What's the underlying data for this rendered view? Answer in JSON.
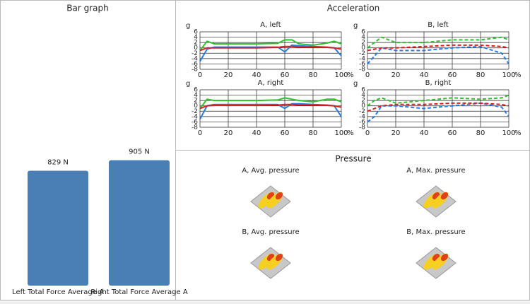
{
  "chart_data": [
    {
      "type": "bar",
      "title": "Bar graph",
      "categories": [
        "Left Total Force Average A",
        "Right Total Force Average A"
      ],
      "values": [
        829,
        905
      ],
      "value_labels": [
        "829 N",
        "905 N"
      ],
      "color": "#4a7fb5"
    },
    {
      "type": "line",
      "title": "A, left",
      "y_label": "g",
      "x_unit": "%",
      "x": [
        0,
        5,
        10,
        20,
        40,
        55,
        60,
        65,
        70,
        80,
        90,
        95,
        100
      ],
      "xlim": [
        0,
        100
      ],
      "ylim": [
        -8,
        6
      ],
      "xticks": [
        0,
        20,
        40,
        60,
        80,
        100
      ],
      "yticks": [
        6,
        4,
        2,
        0,
        -2,
        -4,
        -6,
        -8
      ],
      "grid": true,
      "dashed": false,
      "series": [
        {
          "color": "#2fbf2f",
          "values": [
            -1,
            2.5,
            1.5,
            1.5,
            1.5,
            1.7,
            3,
            3,
            1.5,
            1,
            1.8,
            2.5,
            1.5
          ]
        },
        {
          "color": "#2a7ae2",
          "values": [
            -5,
            -0.5,
            0.3,
            0.3,
            0.3,
            0.3,
            -1.5,
            1,
            0.8,
            0.5,
            0.3,
            0,
            -3
          ]
        },
        {
          "color": "#d62020",
          "values": [
            -1,
            0,
            0,
            0,
            0,
            0.2,
            0.5,
            0.5,
            0.3,
            0.3,
            0.2,
            0,
            -0.5
          ]
        }
      ]
    },
    {
      "type": "line",
      "title": "B, left",
      "y_label": "g",
      "x_unit": "%",
      "x": [
        0,
        5,
        10,
        20,
        40,
        60,
        80,
        95,
        100
      ],
      "xlim": [
        0,
        100
      ],
      "ylim": [
        -8,
        6
      ],
      "xticks": [
        0,
        20,
        40,
        60,
        80,
        100
      ],
      "yticks": [
        6,
        4,
        2,
        0,
        -2,
        -4,
        -6,
        -8
      ],
      "grid": true,
      "dashed": true,
      "series": [
        {
          "color": "#2fbf2f",
          "values": [
            0,
            2,
            4,
            2,
            2,
            3,
            3,
            4,
            3
          ]
        },
        {
          "color": "#2a7ae2",
          "values": [
            -6,
            -3,
            0,
            -1,
            -1,
            0,
            0.5,
            -2,
            -6
          ]
        },
        {
          "color": "#d62020",
          "values": [
            -1,
            -0.5,
            0,
            0,
            0.5,
            1,
            1,
            0.5,
            0
          ]
        }
      ]
    },
    {
      "type": "line",
      "title": "A, right",
      "y_label": "g",
      "x_unit": "%",
      "x": [
        0,
        5,
        10,
        20,
        40,
        55,
        60,
        65,
        70,
        80,
        90,
        95,
        100
      ],
      "xlim": [
        0,
        100
      ],
      "ylim": [
        -8,
        6
      ],
      "xticks": [
        0,
        20,
        40,
        60,
        80,
        100
      ],
      "yticks": [
        6,
        4,
        2,
        0,
        -2,
        -4,
        -6,
        -8
      ],
      "grid": true,
      "dashed": false,
      "series": [
        {
          "color": "#2fbf2f",
          "values": [
            -1,
            2.5,
            2,
            2,
            2,
            2.2,
            3,
            2.5,
            2,
            1.5,
            2.5,
            2.5,
            1.5
          ]
        },
        {
          "color": "#2a7ae2",
          "values": [
            -5,
            0,
            0.5,
            0.5,
            0.5,
            0.5,
            -1,
            0.8,
            0.8,
            0.5,
            0.3,
            0,
            -4
          ]
        },
        {
          "color": "#d62020",
          "values": [
            -1,
            0,
            0.2,
            0.2,
            0.2,
            0.3,
            0.5,
            0.5,
            0.3,
            0.3,
            0.2,
            0,
            -0.5
          ]
        }
      ]
    },
    {
      "type": "line",
      "title": "B, right",
      "y_label": "g",
      "x_unit": "%",
      "x": [
        0,
        5,
        10,
        20,
        40,
        60,
        80,
        95,
        100
      ],
      "xlim": [
        0,
        100
      ],
      "ylim": [
        -8,
        6
      ],
      "xticks": [
        0,
        20,
        40,
        60,
        80,
        100
      ],
      "yticks": [
        6,
        4,
        2,
        0,
        -2,
        -4,
        -6,
        -8
      ],
      "grid": true,
      "dashed": true,
      "series": [
        {
          "color": "#2fbf2f",
          "values": [
            0,
            2,
            3,
            1,
            2,
            3,
            2.5,
            3,
            4
          ]
        },
        {
          "color": "#2a7ae2",
          "values": [
            -6,
            -4,
            0,
            0,
            -1,
            0,
            1,
            -0.5,
            -4
          ]
        },
        {
          "color": "#d62020",
          "values": [
            -2,
            -1,
            0,
            0.5,
            0.5,
            1,
            1,
            0.5,
            0
          ]
        }
      ]
    }
  ],
  "sections": {
    "acceleration": "Acceleration",
    "pressure": "Pressure",
    "pressure_maps": [
      "A, Avg. pressure",
      "A, Max. pressure",
      "B, Avg. pressure",
      "B, Max. pressure"
    ]
  }
}
